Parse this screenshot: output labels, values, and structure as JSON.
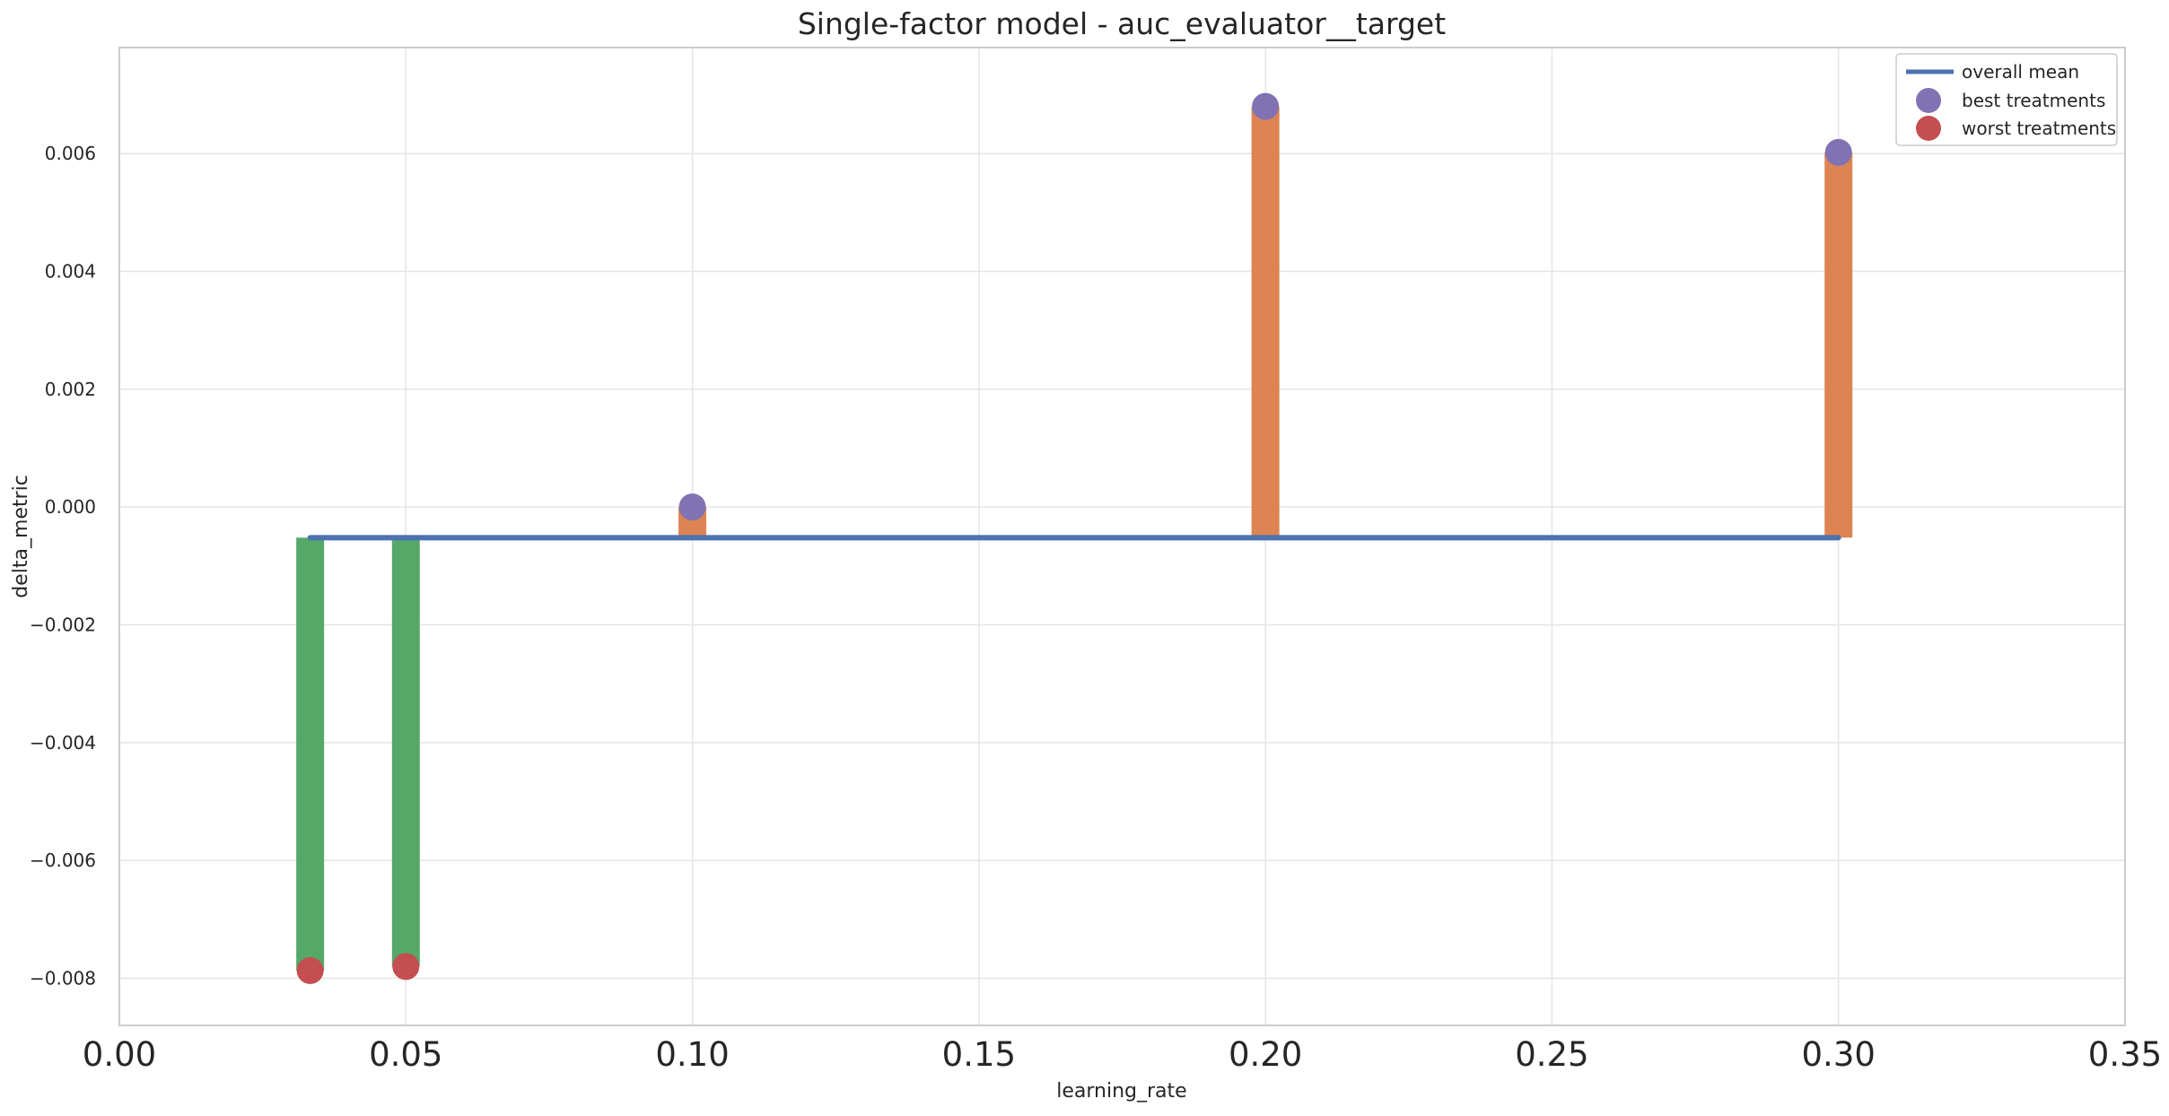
{
  "chart_data": {
    "type": "bar",
    "title": "Single-factor model - auc_evaluator__target",
    "xlabel": "learning_rate",
    "ylabel": "delta_metric",
    "xlim": [
      0.0,
      0.35
    ],
    "ylim": [
      -0.0088,
      0.0078
    ],
    "xticks": [
      0.0,
      0.05,
      0.1,
      0.15,
      0.2,
      0.25,
      0.3,
      0.35
    ],
    "xtick_labels": [
      "0.00",
      "0.05",
      "0.10",
      "0.15",
      "0.20",
      "0.25",
      "0.30",
      "0.35"
    ],
    "yticks": [
      -0.008,
      -0.006,
      -0.004,
      -0.002,
      0.0,
      0.002,
      0.004,
      0.006
    ],
    "ytick_labels": [
      "−0.008",
      "−0.006",
      "−0.004",
      "−0.002",
      "0.000",
      "0.002",
      "0.004",
      "0.006"
    ],
    "grid": true,
    "legend_position": "top-right",
    "overall_mean": -0.00052,
    "overall_mean_x_range": [
      0.0333,
      0.3
    ],
    "bars": [
      {
        "x": 0.0333,
        "value": -0.00787
      },
      {
        "x": 0.05,
        "value": -0.0078
      },
      {
        "x": 0.1,
        "value": 0.0
      },
      {
        "x": 0.2,
        "value": 0.0068
      },
      {
        "x": 0.3,
        "value": 0.00602
      }
    ],
    "series": [
      {
        "name": "overall mean",
        "kind": "line",
        "color": "#4c72b0"
      },
      {
        "name": "best treatments",
        "kind": "scatter",
        "color": "#8172b3",
        "points": [
          [
            0.1,
            0.0
          ],
          [
            0.2,
            0.0068
          ],
          [
            0.3,
            0.00602
          ]
        ]
      },
      {
        "name": "worst treatments",
        "kind": "scatter",
        "color": "#c44e52",
        "points": [
          [
            0.0333,
            -0.00787
          ],
          [
            0.05,
            -0.0078
          ]
        ]
      }
    ],
    "colors": {
      "above_mean_bar": "#dd8452",
      "below_mean_bar": "#55a868",
      "mean_line": "#4c72b0",
      "best": "#8172b3",
      "worst": "#c44e52",
      "grid": "#e5e5e5",
      "frame": "#cccccc"
    }
  }
}
